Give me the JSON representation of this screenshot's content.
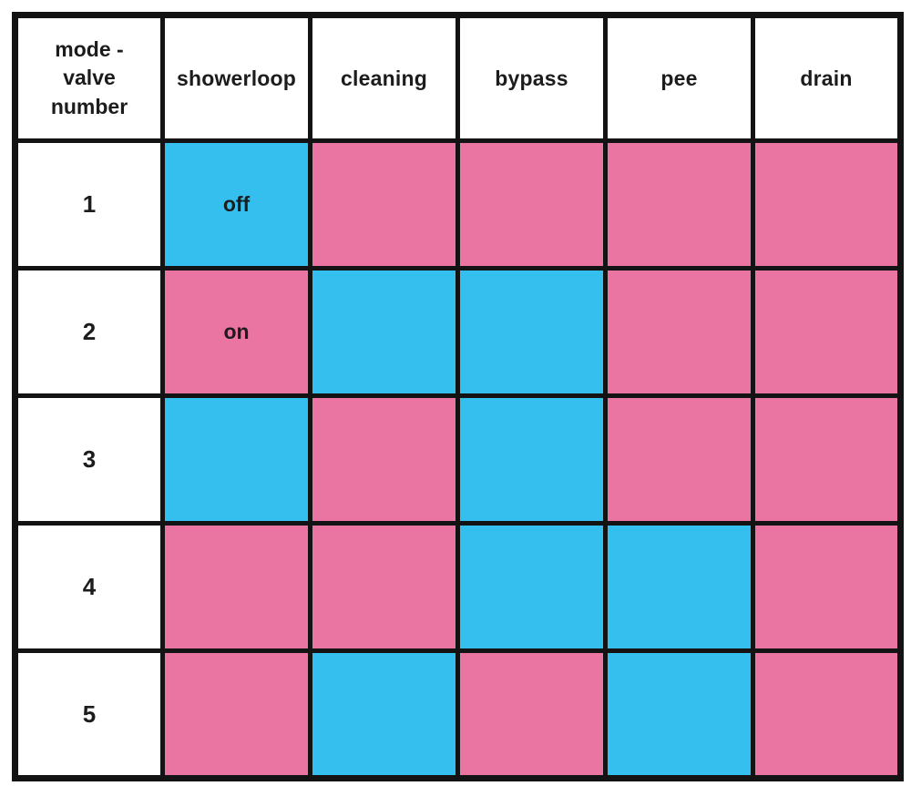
{
  "table": {
    "corner_header": "mode -\nvalve\nnumber",
    "columns": [
      "showerloop",
      "cleaning",
      "bypass",
      "pee",
      "drain"
    ],
    "rows": [
      {
        "valve": "1",
        "states": [
          "off",
          "on",
          "on",
          "on",
          "on"
        ],
        "cell_text": [
          "off",
          "",
          "",
          "",
          ""
        ]
      },
      {
        "valve": "2",
        "states": [
          "on",
          "off",
          "off",
          "on",
          "on"
        ],
        "cell_text": [
          "on",
          "",
          "",
          "",
          ""
        ]
      },
      {
        "valve": "3",
        "states": [
          "off",
          "on",
          "off",
          "on",
          "on"
        ],
        "cell_text": [
          "",
          "",
          "",
          "",
          ""
        ]
      },
      {
        "valve": "4",
        "states": [
          "on",
          "on",
          "off",
          "off",
          "on"
        ],
        "cell_text": [
          "",
          "",
          "",
          "",
          ""
        ]
      },
      {
        "valve": "5",
        "states": [
          "on",
          "off",
          "on",
          "off",
          "on"
        ],
        "cell_text": [
          "",
          "",
          "",
          "",
          ""
        ]
      }
    ],
    "state_colors": {
      "off": "#35BFEE",
      "on": "#EB75A2"
    },
    "border_color": "#131313",
    "off_label": "off",
    "on_label": "on"
  },
  "chart_data": {
    "type": "table",
    "title": "",
    "corner_label": "mode - valve number",
    "columns": [
      "showerloop",
      "cleaning",
      "bypass",
      "pee",
      "drain"
    ],
    "row_labels": [
      "1",
      "2",
      "3",
      "4",
      "5"
    ],
    "cell_states": [
      [
        "off",
        "on",
        "on",
        "on",
        "on"
      ],
      [
        "on",
        "off",
        "off",
        "on",
        "on"
      ],
      [
        "off",
        "on",
        "off",
        "on",
        "on"
      ],
      [
        "on",
        "on",
        "off",
        "off",
        "on"
      ],
      [
        "on",
        "off",
        "on",
        "off",
        "on"
      ]
    ],
    "visible_cell_labels": [
      [
        "off",
        "",
        "",
        "",
        ""
      ],
      [
        "on",
        "",
        "",
        "",
        ""
      ],
      [
        "",
        "",
        "",
        "",
        ""
      ],
      [
        "",
        "",
        "",
        "",
        ""
      ],
      [
        "",
        "",
        "",
        "",
        ""
      ]
    ],
    "legend": {
      "blue_means": "off",
      "pink_means": "on"
    },
    "colors": {
      "off_blue": "#35BFEE",
      "on_pink": "#EB75A2",
      "grid": "#131313",
      "background": "#ffffff"
    },
    "layout_hints": {
      "grid": "on",
      "equal_column_widths": true,
      "header_row": true,
      "header_column": true
    }
  }
}
